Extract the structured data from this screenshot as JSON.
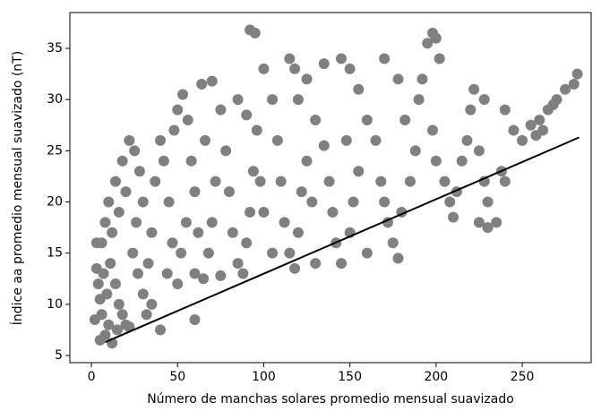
{
  "chart_data": {
    "type": "scatter",
    "xlabel": "Número de manchas solares promedio mensual suavizado",
    "ylabel": "Índice aa promedio mensual suavizado (nT)",
    "xlim": [
      -12.5,
      290
    ],
    "ylim": [
      4.3,
      38.5
    ],
    "xticks": [
      0,
      50,
      100,
      150,
      200,
      250
    ],
    "yticks": [
      5,
      10,
      15,
      20,
      25,
      30,
      35
    ],
    "series": [
      {
        "color": "#808080",
        "x": [
          5,
          8,
          10,
          12,
          15,
          6,
          9,
          4,
          7,
          5,
          11,
          14,
          16,
          18,
          20,
          22,
          3,
          6,
          8,
          10,
          12,
          14,
          16,
          18,
          20,
          22,
          25,
          28,
          30,
          26,
          24,
          27,
          30,
          32,
          35,
          33,
          35,
          37,
          40,
          42,
          45,
          47,
          44,
          50,
          52,
          55,
          48,
          50,
          53,
          56,
          58,
          60,
          62,
          60,
          65,
          68,
          70,
          72,
          66,
          64,
          70,
          75,
          78,
          80,
          82,
          85,
          88,
          90,
          92,
          94,
          96,
          90,
          85,
          92,
          95,
          100,
          105,
          108,
          110,
          112,
          115,
          118,
          120,
          122,
          125,
          120,
          115,
          118,
          125,
          130,
          135,
          138,
          140,
          142,
          145,
          150,
          152,
          155,
          148,
          145,
          150,
          155,
          160,
          165,
          168,
          170,
          172,
          175,
          178,
          180,
          185,
          188,
          182,
          178,
          170,
          190,
          192,
          195,
          198,
          200,
          202,
          198,
          200,
          205,
          208,
          210,
          212,
          215,
          218,
          220,
          222,
          225,
          228,
          230,
          225,
          230,
          235,
          228,
          240,
          245,
          250,
          255,
          260,
          265,
          270,
          275,
          280,
          282,
          268,
          262,
          258,
          240,
          238,
          105,
          100,
          98,
          130,
          160,
          135,
          128,
          60,
          75,
          40,
          3,
          2
        ],
        "values": [
          6.5,
          7,
          8,
          6.2,
          7.5,
          9,
          11,
          12,
          13,
          10.5,
          14,
          12,
          10,
          9,
          8,
          7.8,
          13.5,
          16,
          18,
          20,
          17,
          22,
          19,
          24,
          21,
          26,
          25,
          23,
          20,
          18,
          15,
          13,
          11,
          9,
          10,
          14,
          17,
          22,
          26,
          24,
          20,
          16,
          13,
          12,
          15,
          18,
          27,
          29,
          30.5,
          28,
          24,
          21,
          17,
          13,
          12.5,
          15,
          18,
          22,
          26,
          31.5,
          31.8,
          29,
          25,
          21,
          17,
          14,
          13,
          16,
          19,
          23,
          27,
          28.5,
          30,
          36.8,
          36.5,
          33,
          30,
          26,
          22,
          18,
          15,
          13.5,
          17,
          21,
          24,
          30,
          34,
          33,
          32,
          28,
          25.5,
          22,
          19,
          16,
          14,
          17,
          20,
          23,
          26,
          34,
          33,
          31,
          28,
          26,
          22,
          20,
          18,
          16,
          14.5,
          19,
          22,
          25,
          28,
          32,
          34,
          30,
          32,
          35.5,
          36.5,
          36,
          34,
          27,
          24,
          22,
          20,
          18.5,
          21,
          24,
          26,
          29,
          31,
          25,
          22,
          20,
          18,
          17.5,
          18,
          30,
          29,
          27,
          26,
          27.5,
          28,
          29,
          30,
          31,
          31.5,
          32.5,
          29.5,
          27,
          26.5,
          22,
          23,
          15,
          19,
          22,
          14,
          15,
          33.5,
          20,
          8.5,
          12.8,
          7.5,
          16,
          8.5
        ]
      }
    ],
    "line": {
      "color": "#000000",
      "x": [
        8,
        283
      ],
      "values": [
        6.3,
        26.3
      ]
    }
  }
}
